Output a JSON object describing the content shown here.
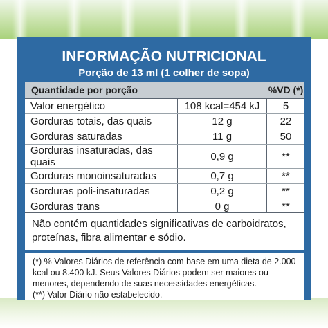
{
  "label": {
    "title": "INFORMAÇÃO NUTRICIONAL",
    "portion": "Porção de 13 ml (1 colher de sopa)",
    "column_quantity": "Quantidade por porção",
    "column_vd": "%VD (*)",
    "rows": [
      {
        "name": "Valor energético",
        "amount": "108 kcal=454 kJ",
        "vd": "5"
      },
      {
        "name": "Gorduras totais, das quais",
        "amount": "12 g",
        "vd": "22"
      },
      {
        "name": "Gorduras saturadas",
        "amount": "11 g",
        "vd": "50"
      },
      {
        "name": "Gorduras insaturadas, das quais",
        "amount": "0,9 g",
        "vd": "**"
      },
      {
        "name": "Gorduras monoinsaturadas",
        "amount": "0,7 g",
        "vd": "**"
      },
      {
        "name": "Gorduras poli-insaturadas",
        "amount": "0,2 g",
        "vd": "**"
      },
      {
        "name": "Gorduras trans",
        "amount": "0 g",
        "vd": "**"
      }
    ],
    "note": "Não contém quantidades significativas de carboidratos, proteínas, fibra alimentar e sódio.",
    "footnote_1": "(*) % Valores Diários de referência com base em uma dieta de 2.000 kcal ou 8.400 kJ. Seus Valores Diários podem ser maiores ou menores, dependendo de suas necessidades energéticas.",
    "footnote_2": "(**) Valor Diário não estabelecido."
  },
  "colors": {
    "panel_blue": "#2e6aa3",
    "header_gray": "#c7cdd2",
    "background_green": "#a9d27c"
  }
}
